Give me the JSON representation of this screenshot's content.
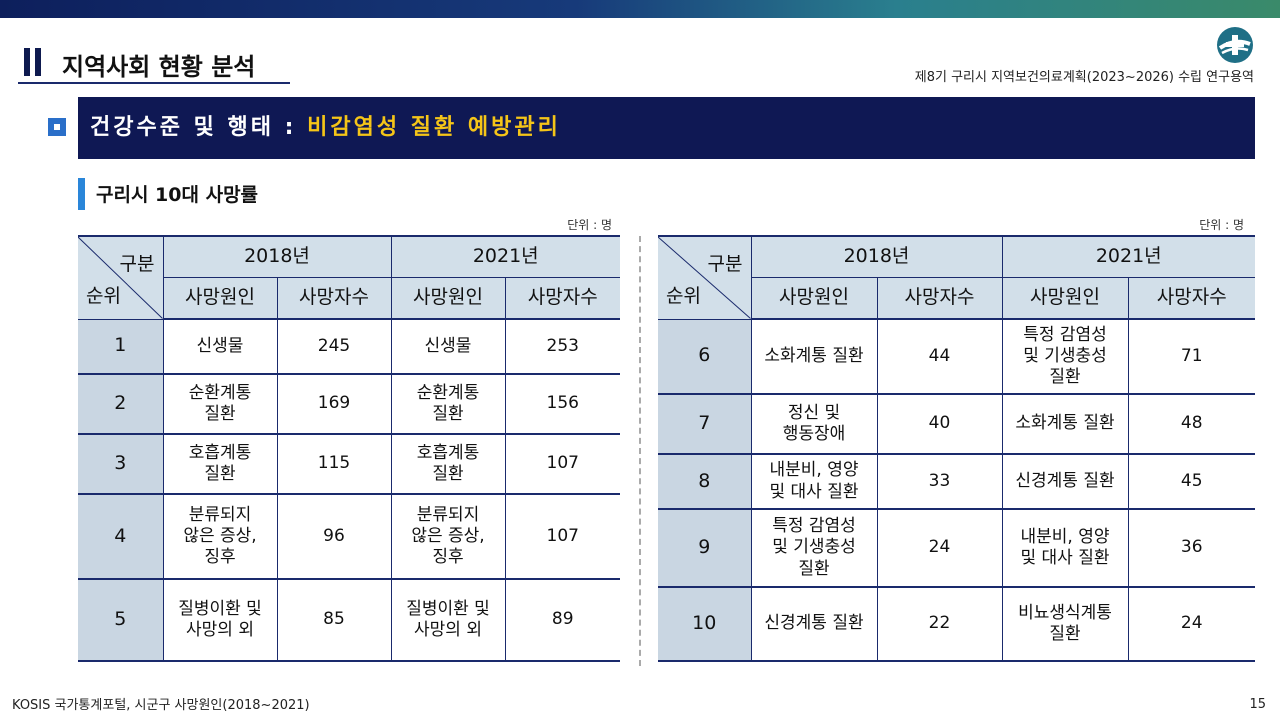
{
  "header": {
    "page_title": "지역사회 현황 분석",
    "project_title": "제8기 구리시 지역보건의료계획(2023~2026) 수립 연구용역"
  },
  "section": {
    "prefix": "건강수준 및 행태 : ",
    "highlight": "비감염성 질환 예방관리"
  },
  "subtitle": "구리시 10대 사망률",
  "unit_label": "단위 : 명",
  "table_headers": {
    "category": "구분",
    "rank": "순위",
    "year1": "2018년",
    "year2": "2021년",
    "cause": "사망원인",
    "deaths": "사망자수"
  },
  "left_rows": [
    {
      "rank": "1",
      "cause_2018": "신생물",
      "deaths_2018": "245",
      "cause_2021": "신생물",
      "deaths_2021": "253"
    },
    {
      "rank": "2",
      "cause_2018": "순환계통\n질환",
      "deaths_2018": "169",
      "cause_2021": "순환계통\n질환",
      "deaths_2021": "156"
    },
    {
      "rank": "3",
      "cause_2018": "호흡계통\n질환",
      "deaths_2018": "115",
      "cause_2021": "호흡계통\n질환",
      "deaths_2021": "107"
    },
    {
      "rank": "4",
      "cause_2018": "분류되지\n않은 증상,\n징후",
      "deaths_2018": "96",
      "cause_2021": "분류되지\n않은 증상,\n징후",
      "deaths_2021": "107"
    },
    {
      "rank": "5",
      "cause_2018": "질병이환 및\n사망의 외",
      "deaths_2018": "85",
      "cause_2021": "질병이환 및\n사망의 외",
      "deaths_2021": "89"
    }
  ],
  "right_rows": [
    {
      "rank": "6",
      "cause_2018": "소화계통 질환",
      "deaths_2018": "44",
      "cause_2021": "특정 감염성\n및 기생충성\n질환",
      "deaths_2021": "71"
    },
    {
      "rank": "7",
      "cause_2018": "정신 및\n행동장애",
      "deaths_2018": "40",
      "cause_2021": "소화계통 질환",
      "deaths_2021": "48"
    },
    {
      "rank": "8",
      "cause_2018": "내분비, 영양\n및 대사 질환",
      "deaths_2018": "33",
      "cause_2021": "신경계통 질환",
      "deaths_2021": "45"
    },
    {
      "rank": "9",
      "cause_2018": "특정 감염성\n및 기생충성\n질환",
      "deaths_2018": "24",
      "cause_2021": "내분비, 영양\n및 대사 질환",
      "deaths_2021": "36"
    },
    {
      "rank": "10",
      "cause_2018": "신경계통 질환",
      "deaths_2018": "22",
      "cause_2021": "비뇨생식계통\n질환",
      "deaths_2021": "24"
    }
  ],
  "footer": {
    "source": "KOSIS 국가통계포털, 시군구 사망원인(2018~2021)",
    "page_number": "15"
  },
  "colors": {
    "banner": "#0f1854",
    "highlight": "#f5c518",
    "header_cell": "#d2dfe9",
    "rank_cell": "#c9d6e2",
    "accent_blue": "#2a86d9"
  },
  "icons": [
    "logo-icon",
    "section-square-icon"
  ]
}
